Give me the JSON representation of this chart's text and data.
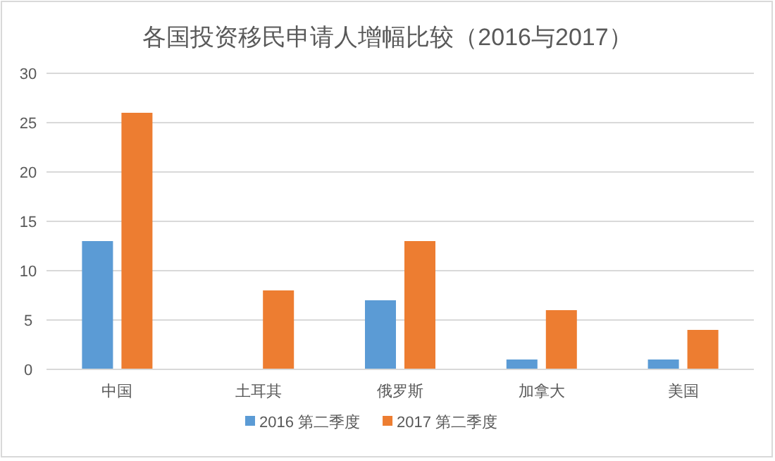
{
  "chart_data": {
    "type": "bar",
    "title": "各国投资移民申请人增幅比较（2016与2017）",
    "categories": [
      "中国",
      "土耳其",
      "俄罗斯",
      "加拿大",
      "美国"
    ],
    "series": [
      {
        "name": "2016 第二季度",
        "color": "#5b9bd5",
        "values": [
          13,
          0,
          7,
          1,
          1
        ]
      },
      {
        "name": "2017 第二季度",
        "color": "#ed7d31",
        "values": [
          26,
          8,
          13,
          6,
          4
        ]
      }
    ],
    "ylim": [
      0,
      30
    ],
    "yticks": [
      0,
      5,
      10,
      15,
      20,
      25,
      30
    ],
    "grid": "y",
    "legend": "bottom"
  }
}
